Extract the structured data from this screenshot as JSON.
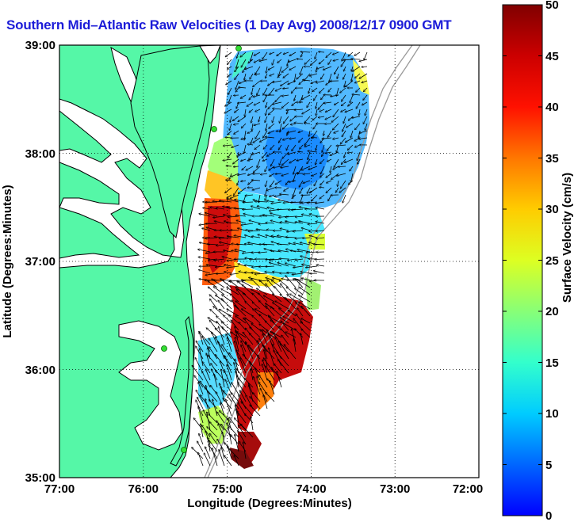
{
  "title": "Southern Mid–Atlantic Raw Velocities (1 Day Avg) 2008/12/17 0900 GMT",
  "xaxis": {
    "label": "Longitude (Degrees:Minutes)",
    "ticks": [
      "77:00",
      "76:00",
      "75:00",
      "74:00",
      "73:00",
      "72:00"
    ]
  },
  "yaxis": {
    "label": "Latitude (Degrees:Minutes)",
    "ticks": [
      "39:00",
      "38:00",
      "37:00",
      "36:00",
      "35:00"
    ]
  },
  "colorbar": {
    "label": "Surface Velocity (cm/s)",
    "ticks": [
      "50",
      "45",
      "40",
      "35",
      "30",
      "25",
      "20",
      "15",
      "10",
      "5",
      "0"
    ]
  },
  "colors": {
    "title": "#1c1cd8",
    "land": "#55f7a7",
    "coast": "#000000",
    "bathymetry": "#9a9a9a",
    "station": "#33dd33"
  }
}
